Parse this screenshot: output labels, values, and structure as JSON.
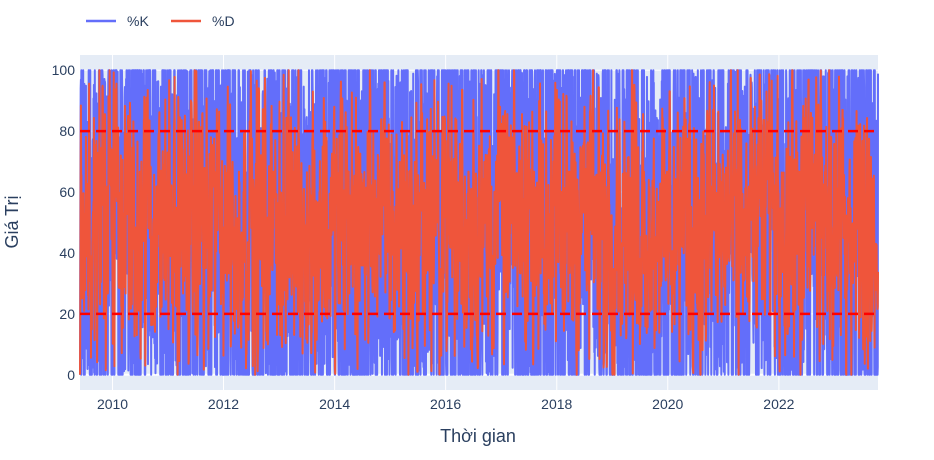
{
  "chart_data": {
    "type": "line",
    "xlabel": "Thời gian",
    "ylabel": "Giá Trị",
    "xlim": [
      "2009-06-01",
      "2023-10-15"
    ],
    "ylim": [
      -5,
      105
    ],
    "x_ticks": [
      "2010",
      "2012",
      "2014",
      "2016",
      "2018",
      "2020",
      "2022"
    ],
    "y_ticks": [
      0,
      20,
      40,
      60,
      80,
      100
    ],
    "grid": true,
    "legend": {
      "position": "top-left",
      "orientation": "horizontal"
    },
    "plot_background": "#e5ecf6",
    "series": [
      {
        "name": "%K",
        "color": "#636efa"
      },
      {
        "name": "%D",
        "color": "#ef553b"
      }
    ],
    "reference_lines": [
      {
        "y": 80,
        "color": "#ff0000",
        "style": "dashed"
      },
      {
        "y": 20,
        "color": "#ff0000",
        "style": "dashed"
      }
    ],
    "date_range": [
      "2009-06-01",
      "2023-10-15"
    ]
  }
}
